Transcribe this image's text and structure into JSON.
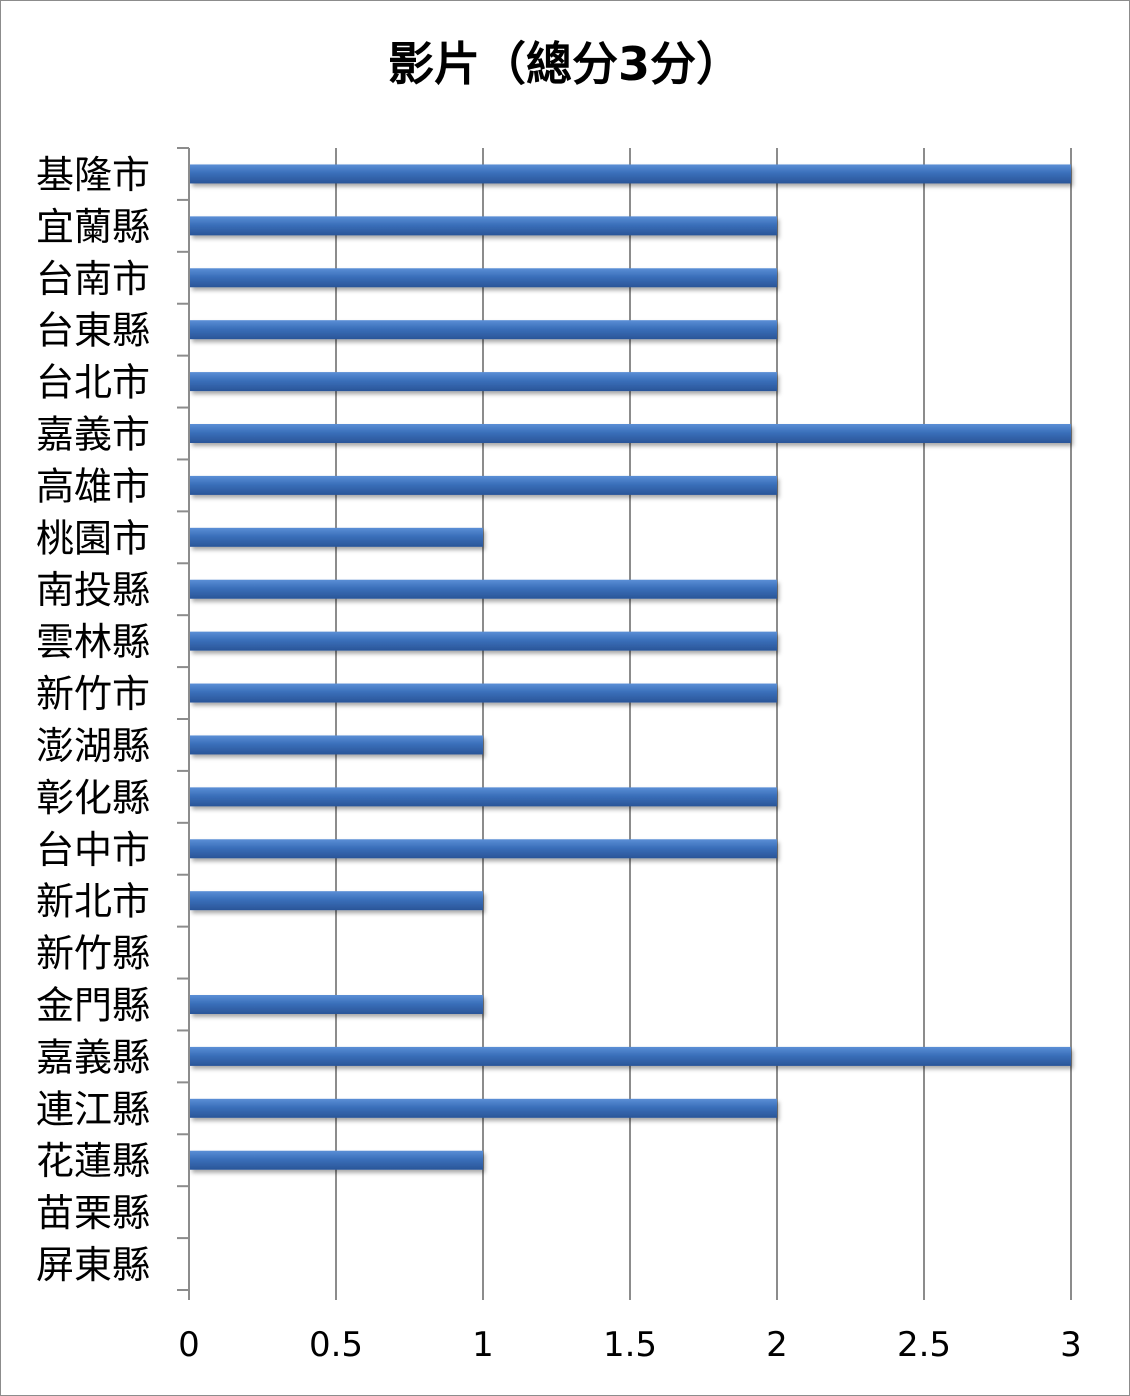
{
  "chart_data": {
    "type": "bar",
    "orientation": "horizontal",
    "title": "影片（總分3分）",
    "categories": [
      "基隆市",
      "宜蘭縣",
      "台南市",
      "台東縣",
      "台北市",
      "嘉義市",
      "高雄市",
      "桃園市",
      "南投縣",
      "雲林縣",
      "新竹市",
      "澎湖縣",
      "彰化縣",
      "台中市",
      "新北市",
      "新竹縣",
      "金門縣",
      "嘉義縣",
      "連江縣",
      "花蓮縣",
      "苗栗縣",
      "屏東縣"
    ],
    "values": [
      3,
      2,
      2,
      2,
      2,
      3,
      2,
      1,
      2,
      2,
      2,
      1,
      2,
      2,
      1,
      0,
      1,
      3,
      2,
      1,
      0,
      0
    ],
    "xlim": [
      0,
      3
    ],
    "x_ticks": [
      "0",
      "0.5",
      "1",
      "1.5",
      "2",
      "2.5",
      "3"
    ],
    "grid": true,
    "bar_color": "#3a6fba",
    "legend": "none"
  }
}
